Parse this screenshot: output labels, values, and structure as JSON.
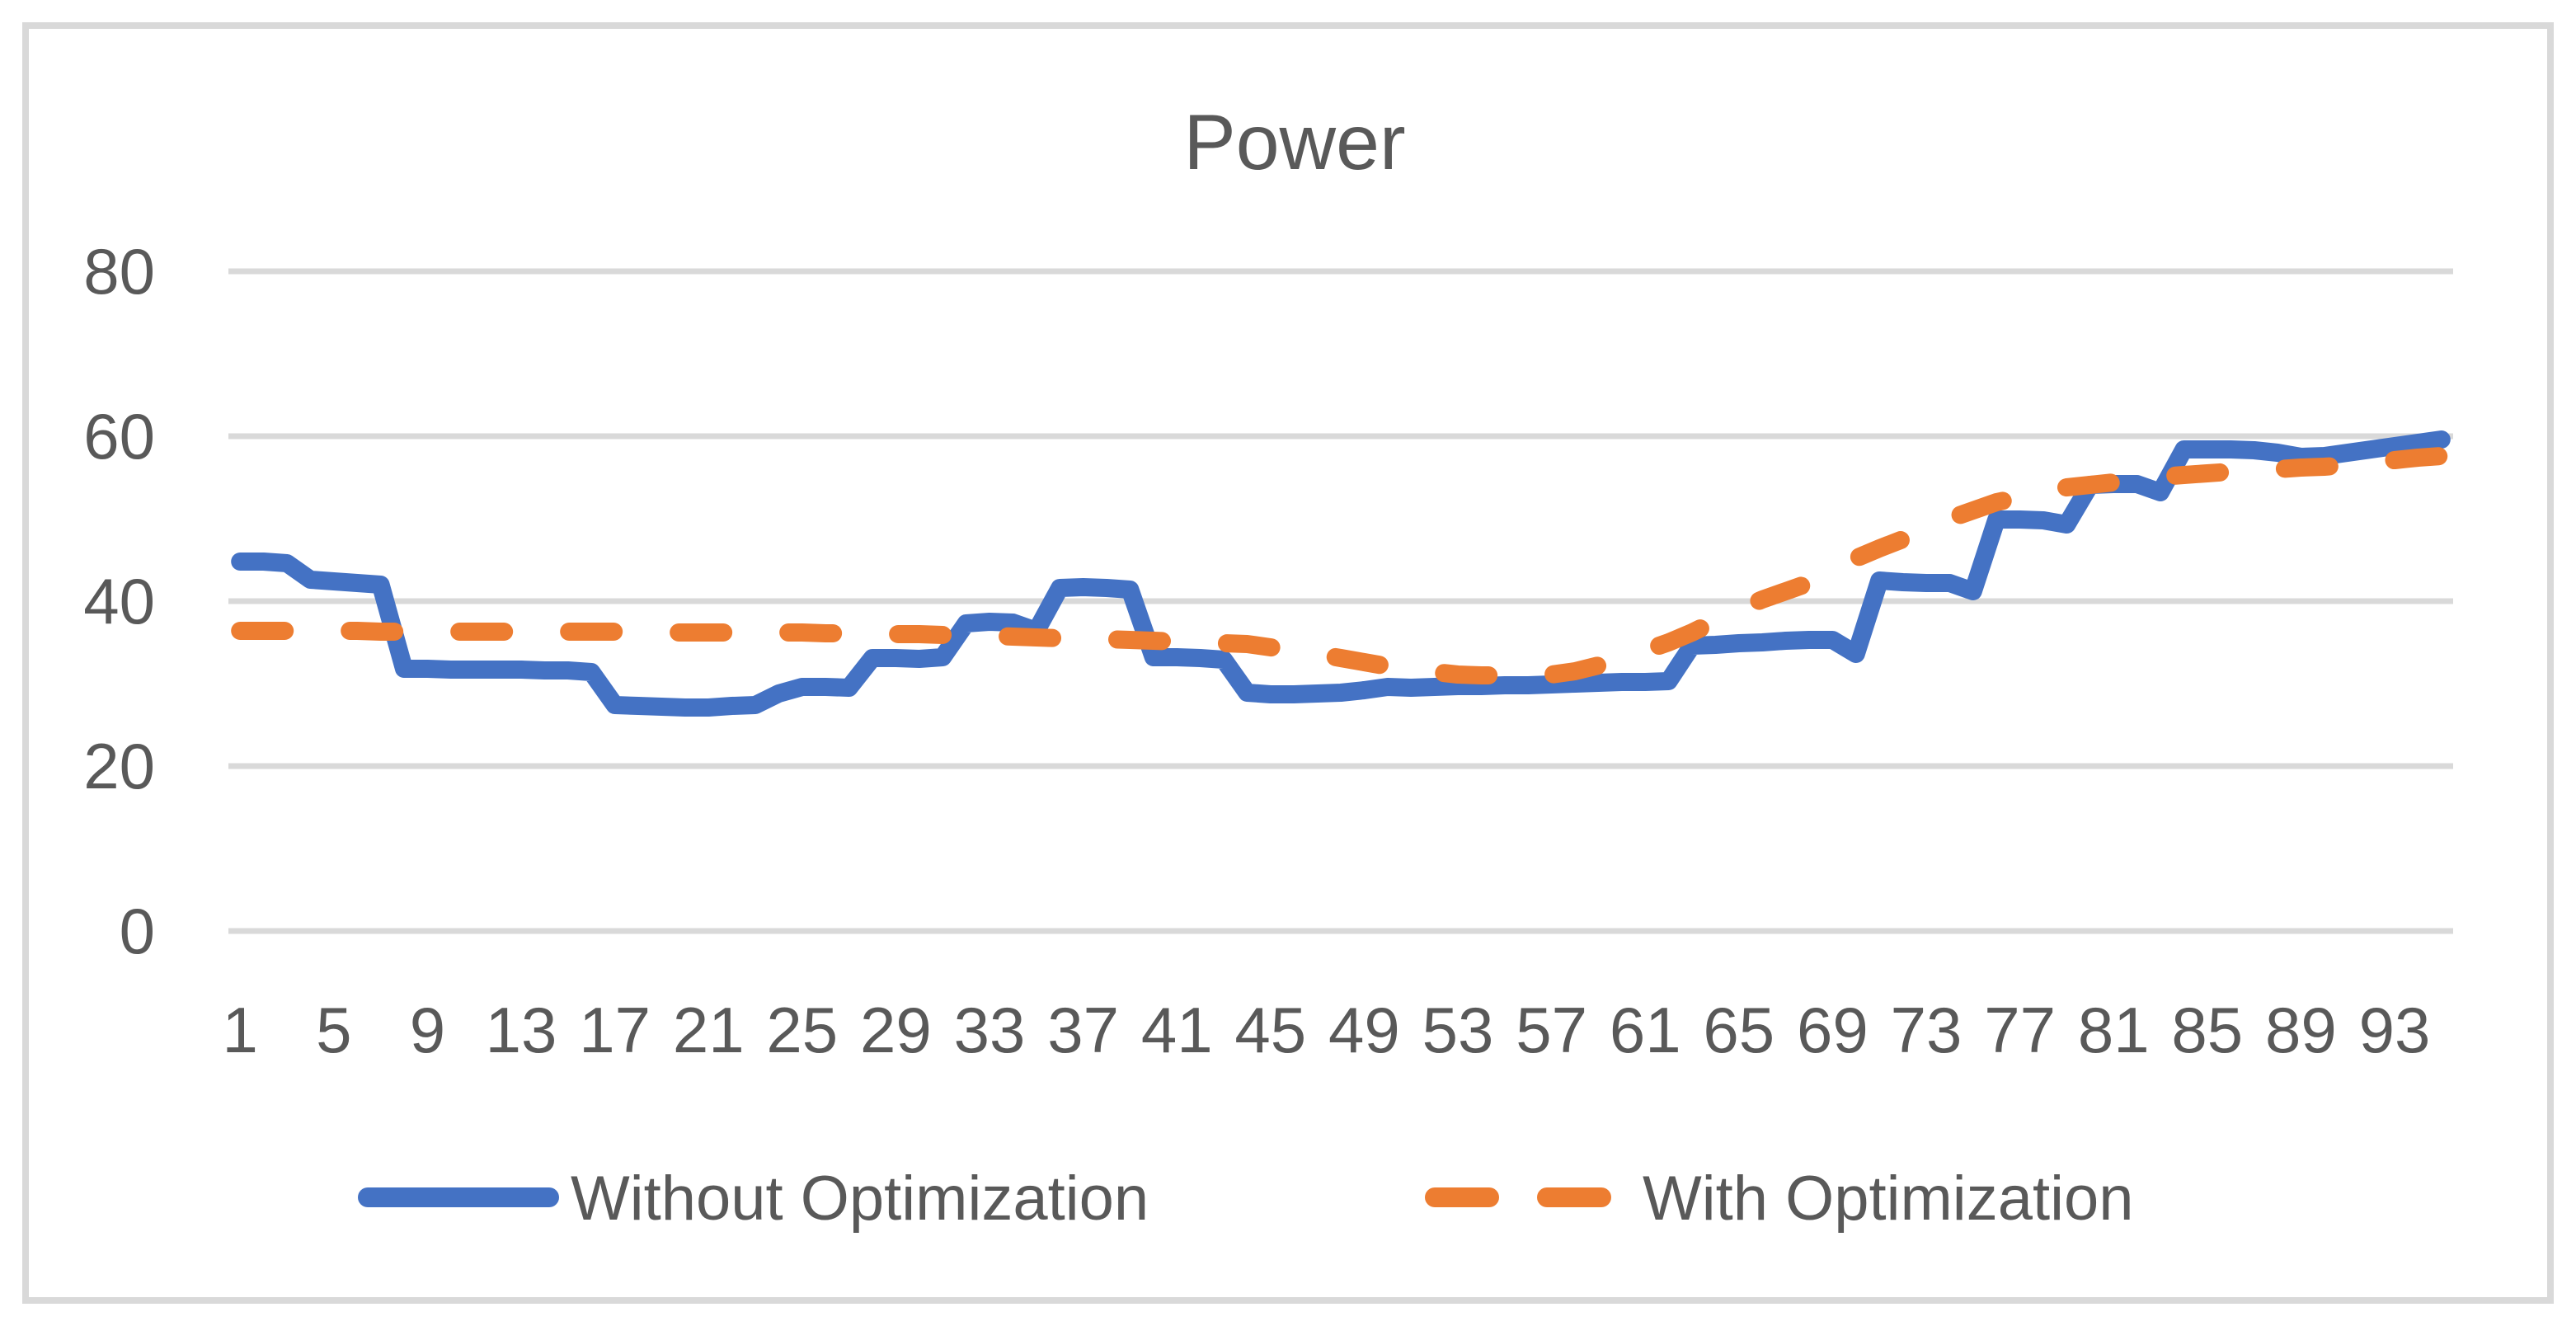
{
  "chart_data": {
    "type": "line",
    "title": "Power",
    "grid": "horizontal",
    "legend_position": "bottom",
    "x_tick_labels": [
      1,
      5,
      9,
      13,
      17,
      21,
      25,
      29,
      33,
      37,
      41,
      45,
      49,
      53,
      57,
      61,
      65,
      69,
      73,
      77,
      81,
      85,
      89,
      93
    ],
    "x_range": [
      1,
      95
    ],
    "y_ticks": [
      0,
      20,
      40,
      60,
      80
    ],
    "ylim": [
      0,
      88
    ],
    "colors": {
      "series_blue": "#4472C4",
      "series_orange": "#ED7D31",
      "gridline": "#D9D9D9",
      "border": "#D9D9D9",
      "axis_text": "#595959"
    },
    "series": [
      {
        "name": "Without Optimization",
        "color": "#4472C4",
        "style": "solid",
        "values": [
          44.8,
          44.8,
          44.6,
          42.6,
          42.4,
          42.2,
          42.0,
          31.8,
          31.8,
          31.7,
          31.7,
          31.7,
          31.7,
          31.6,
          31.6,
          31.4,
          27.4,
          27.3,
          27.2,
          27.1,
          27.1,
          27.3,
          27.4,
          28.8,
          29.6,
          29.6,
          29.5,
          33.1,
          33.1,
          33.0,
          33.2,
          37.3,
          37.5,
          37.4,
          36.4,
          41.6,
          41.7,
          41.6,
          41.4,
          33.2,
          33.2,
          33.1,
          32.9,
          28.9,
          28.7,
          28.7,
          28.8,
          28.9,
          29.2,
          29.6,
          29.5,
          29.6,
          29.7,
          29.7,
          29.8,
          29.8,
          29.9,
          30.0,
          30.1,
          30.2,
          30.2,
          30.3,
          34.6,
          34.7,
          34.9,
          35.0,
          35.2,
          35.3,
          35.3,
          33.6,
          42.5,
          42.3,
          42.2,
          42.2,
          41.2,
          49.9,
          49.9,
          49.8,
          49.3,
          54.1,
          54.2,
          54.2,
          53.2,
          58.4,
          58.4,
          58.4,
          58.3,
          58.0,
          57.5,
          57.6,
          58.0,
          58.4,
          58.8,
          59.2,
          59.6
        ]
      },
      {
        "name": "With Optimization",
        "color": "#ED7D31",
        "style": "dashed",
        "values": [
          36.4,
          36.4,
          36.4,
          36.4,
          36.4,
          36.4,
          36.3,
          36.3,
          36.3,
          36.3,
          36.3,
          36.3,
          36.3,
          36.3,
          36.3,
          36.3,
          36.3,
          36.2,
          36.2,
          36.2,
          36.2,
          36.2,
          36.2,
          36.2,
          36.2,
          36.1,
          36.1,
          36.1,
          36.0,
          36.0,
          35.9,
          35.9,
          35.8,
          35.7,
          35.6,
          35.5,
          35.4,
          35.4,
          35.3,
          35.2,
          35.1,
          35.0,
          34.9,
          34.8,
          34.4,
          34.0,
          33.6,
          33.1,
          32.6,
          32.1,
          31.7,
          31.4,
          31.1,
          31.0,
          31.0,
          31.0,
          31.1,
          31.5,
          32.2,
          33.0,
          34.0,
          35.0,
          36.2,
          37.6,
          39.0,
          40.2,
          41.2,
          42.2,
          43.7,
          45.2,
          46.4,
          47.5,
          48.5,
          50.0,
          51.0,
          52.0,
          52.6,
          53.3,
          53.8,
          54.1,
          54.4,
          54.8,
          55.1,
          55.3,
          55.5,
          55.7,
          55.9,
          56.0,
          56.2,
          56.3,
          56.5,
          56.8,
          57.1,
          57.4,
          57.6
        ]
      }
    ]
  }
}
